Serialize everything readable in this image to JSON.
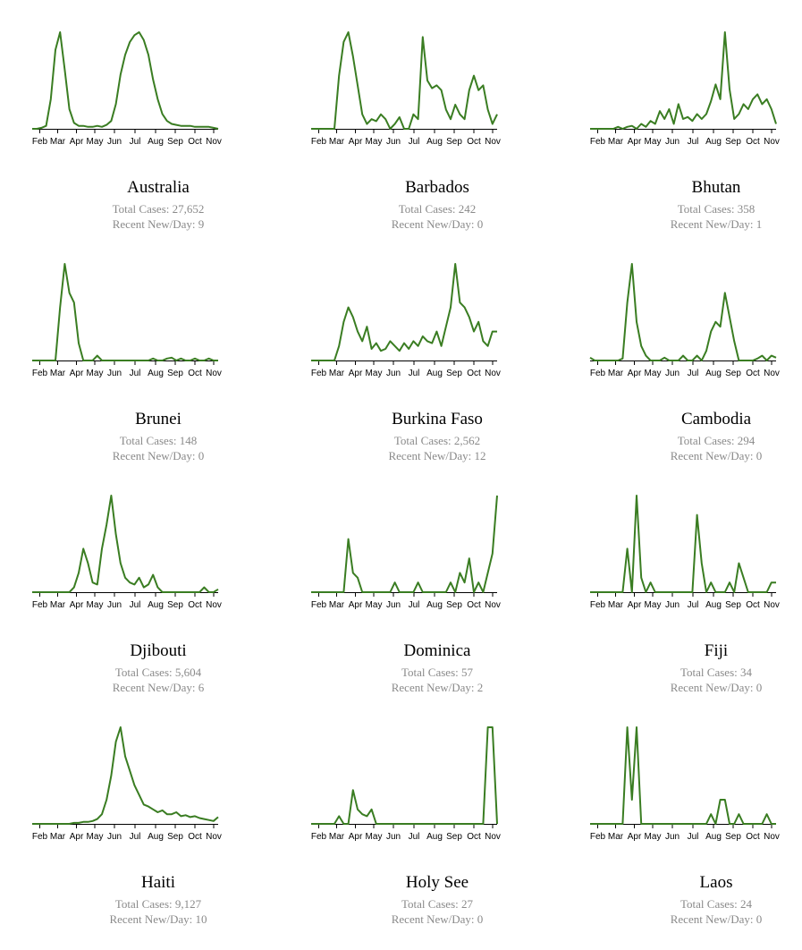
{
  "charts_meta": {
    "total_label": "Total Cases: ",
    "recent_label": "Recent New/Day: ",
    "line_color": "#3a7d22"
  },
  "chart_data": [
    {
      "type": "line",
      "country": "Australia",
      "total_cases": "27,652",
      "recent_new_per_day": "9",
      "x_ticks": [
        "Feb",
        "Mar",
        "Apr",
        "May",
        "Jun",
        "Jul",
        "Aug",
        "Sep",
        "Oct",
        "Nov"
      ],
      "x": [
        0,
        1,
        2,
        3,
        4,
        5,
        6,
        7,
        8,
        9,
        10,
        11,
        12,
        13,
        14,
        15,
        16,
        17,
        18,
        19,
        20,
        21,
        22,
        23,
        24,
        25,
        26,
        27,
        28,
        29,
        30,
        31,
        32,
        33,
        34,
        35,
        36,
        37,
        38,
        39,
        40
      ],
      "values": [
        0,
        0,
        1,
        3,
        30,
        80,
        98,
        60,
        20,
        6,
        3,
        3,
        2,
        2,
        3,
        2,
        4,
        8,
        25,
        55,
        75,
        88,
        95,
        98,
        90,
        75,
        50,
        30,
        15,
        8,
        5,
        4,
        3,
        3,
        3,
        2,
        2,
        2,
        2,
        1,
        0
      ]
    },
    {
      "type": "line",
      "country": "Barbados",
      "total_cases": "242",
      "recent_new_per_day": "0",
      "x_ticks": [
        "Feb",
        "Mar",
        "Apr",
        "May",
        "Jun",
        "Jul",
        "Aug",
        "Sep",
        "Oct",
        "Nov"
      ],
      "x": [
        0,
        1,
        2,
        3,
        4,
        5,
        6,
        7,
        8,
        9,
        10,
        11,
        12,
        13,
        14,
        15,
        16,
        17,
        18,
        19,
        20,
        21,
        22,
        23,
        24,
        25,
        26,
        27,
        28,
        29,
        30,
        31,
        32,
        33,
        34,
        35,
        36,
        37,
        38,
        39,
        40
      ],
      "values": [
        0,
        0,
        0,
        0,
        0,
        0,
        55,
        90,
        100,
        75,
        45,
        15,
        5,
        10,
        8,
        15,
        10,
        0,
        5,
        12,
        0,
        0,
        15,
        10,
        95,
        50,
        42,
        45,
        40,
        20,
        10,
        25,
        15,
        10,
        40,
        55,
        40,
        45,
        20,
        5,
        15
      ]
    },
    {
      "type": "line",
      "country": "Bhutan",
      "total_cases": "358",
      "recent_new_per_day": "1",
      "x_ticks": [
        "Feb",
        "Mar",
        "Apr",
        "May",
        "Jun",
        "Jul",
        "Aug",
        "Sep",
        "Oct",
        "Nov"
      ],
      "x": [
        0,
        1,
        2,
        3,
        4,
        5,
        6,
        7,
        8,
        9,
        10,
        11,
        12,
        13,
        14,
        15,
        16,
        17,
        18,
        19,
        20,
        21,
        22,
        23,
        24,
        25,
        26,
        27,
        28,
        29,
        30,
        31,
        32,
        33,
        34,
        35,
        36,
        37,
        38,
        39,
        40
      ],
      "values": [
        0,
        0,
        0,
        0,
        0,
        0,
        2,
        0,
        2,
        3,
        0,
        5,
        2,
        8,
        5,
        18,
        10,
        20,
        5,
        25,
        10,
        12,
        8,
        15,
        10,
        15,
        28,
        45,
        30,
        98,
        40,
        10,
        15,
        25,
        20,
        30,
        35,
        25,
        30,
        20,
        5
      ]
    },
    {
      "type": "line",
      "country": "Brunei",
      "total_cases": "148",
      "recent_new_per_day": "0",
      "x_ticks": [
        "Feb",
        "Mar",
        "Apr",
        "May",
        "Jun",
        "Jul",
        "Aug",
        "Sep",
        "Oct",
        "Nov"
      ],
      "x": [
        0,
        1,
        2,
        3,
        4,
        5,
        6,
        7,
        8,
        9,
        10,
        11,
        12,
        13,
        14,
        15,
        16,
        17,
        18,
        19,
        20,
        21,
        22,
        23,
        24,
        25,
        26,
        27,
        28,
        29,
        30,
        31,
        32,
        33,
        34,
        35,
        36,
        37,
        38,
        39,
        40
      ],
      "values": [
        0,
        0,
        0,
        0,
        0,
        0,
        55,
        100,
        70,
        60,
        18,
        0,
        0,
        0,
        5,
        0,
        0,
        0,
        0,
        0,
        0,
        0,
        0,
        0,
        0,
        0,
        2,
        0,
        0,
        2,
        3,
        0,
        2,
        0,
        0,
        2,
        0,
        0,
        2,
        0,
        0
      ]
    },
    {
      "type": "line",
      "country": "Burkina Faso",
      "total_cases": "2,562",
      "recent_new_per_day": "12",
      "x_ticks": [
        "Feb",
        "Mar",
        "Apr",
        "May",
        "Jun",
        "Jul",
        "Aug",
        "Sep",
        "Oct",
        "Nov"
      ],
      "x": [
        0,
        1,
        2,
        3,
        4,
        5,
        6,
        7,
        8,
        9,
        10,
        11,
        12,
        13,
        14,
        15,
        16,
        17,
        18,
        19,
        20,
        21,
        22,
        23,
        24,
        25,
        26,
        27,
        28,
        29,
        30,
        31,
        32,
        33,
        34,
        35,
        36,
        37,
        38,
        39,
        40
      ],
      "values": [
        0,
        0,
        0,
        0,
        0,
        0,
        15,
        40,
        55,
        45,
        30,
        20,
        35,
        12,
        18,
        10,
        12,
        20,
        15,
        10,
        18,
        12,
        20,
        15,
        25,
        20,
        18,
        30,
        15,
        35,
        55,
        100,
        60,
        55,
        45,
        30,
        40,
        20,
        15,
        30,
        30
      ]
    },
    {
      "type": "line",
      "country": "Cambodia",
      "total_cases": "294",
      "recent_new_per_day": "0",
      "x_ticks": [
        "Feb",
        "Mar",
        "Apr",
        "May",
        "Jun",
        "Jul",
        "Aug",
        "Sep",
        "Oct",
        "Nov"
      ],
      "x": [
        0,
        1,
        2,
        3,
        4,
        5,
        6,
        7,
        8,
        9,
        10,
        11,
        12,
        13,
        14,
        15,
        16,
        17,
        18,
        19,
        20,
        21,
        22,
        23,
        24,
        25,
        26,
        27,
        28,
        29,
        30,
        31,
        32,
        33,
        34,
        35,
        36,
        37,
        38,
        39,
        40
      ],
      "values": [
        3,
        0,
        0,
        0,
        0,
        0,
        0,
        2,
        60,
        100,
        40,
        15,
        5,
        0,
        0,
        0,
        3,
        0,
        0,
        0,
        5,
        0,
        0,
        5,
        0,
        10,
        30,
        40,
        35,
        70,
        45,
        20,
        0,
        0,
        0,
        0,
        2,
        5,
        0,
        5,
        3
      ]
    },
    {
      "type": "line",
      "country": "Djibouti",
      "total_cases": "5,604",
      "recent_new_per_day": "6",
      "x_ticks": [
        "Feb",
        "Mar",
        "Apr",
        "May",
        "Jun",
        "Jul",
        "Aug",
        "Sep",
        "Oct",
        "Nov"
      ],
      "x": [
        0,
        1,
        2,
        3,
        4,
        5,
        6,
        7,
        8,
        9,
        10,
        11,
        12,
        13,
        14,
        15,
        16,
        17,
        18,
        19,
        20,
        21,
        22,
        23,
        24,
        25,
        26,
        27,
        28,
        29,
        30,
        31,
        32,
        33,
        34,
        35,
        36,
        37,
        38,
        39,
        40
      ],
      "values": [
        0,
        0,
        0,
        0,
        0,
        0,
        0,
        0,
        0,
        5,
        20,
        45,
        30,
        10,
        8,
        45,
        70,
        100,
        60,
        30,
        15,
        10,
        8,
        15,
        5,
        8,
        18,
        5,
        0,
        0,
        0,
        0,
        0,
        0,
        0,
        0,
        0,
        5,
        0,
        0,
        3
      ]
    },
    {
      "type": "line",
      "country": "Dominica",
      "total_cases": "57",
      "recent_new_per_day": "2",
      "x_ticks": [
        "Feb",
        "Mar",
        "Apr",
        "May",
        "Jun",
        "Jul",
        "Aug",
        "Sep",
        "Oct",
        "Nov"
      ],
      "x": [
        0,
        1,
        2,
        3,
        4,
        5,
        6,
        7,
        8,
        9,
        10,
        11,
        12,
        13,
        14,
        15,
        16,
        17,
        18,
        19,
        20,
        21,
        22,
        23,
        24,
        25,
        26,
        27,
        28,
        29,
        30,
        31,
        32,
        33,
        34,
        35,
        36,
        37,
        38,
        39,
        40
      ],
      "values": [
        0,
        0,
        0,
        0,
        0,
        0,
        0,
        0,
        55,
        20,
        15,
        0,
        0,
        0,
        0,
        0,
        0,
        0,
        10,
        0,
        0,
        0,
        0,
        10,
        0,
        0,
        0,
        0,
        0,
        0,
        10,
        0,
        20,
        10,
        35,
        0,
        10,
        0,
        20,
        40,
        100
      ]
    },
    {
      "type": "line",
      "country": "Fiji",
      "total_cases": "34",
      "recent_new_per_day": "0",
      "x_ticks": [
        "Feb",
        "Mar",
        "Apr",
        "May",
        "Jun",
        "Jul",
        "Aug",
        "Sep",
        "Oct",
        "Nov"
      ],
      "x": [
        0,
        1,
        2,
        3,
        4,
        5,
        6,
        7,
        8,
        9,
        10,
        11,
        12,
        13,
        14,
        15,
        16,
        17,
        18,
        19,
        20,
        21,
        22,
        23,
        24,
        25,
        26,
        27,
        28,
        29,
        30,
        31,
        32,
        33,
        34,
        35,
        36,
        37,
        38,
        39,
        40
      ],
      "values": [
        0,
        0,
        0,
        0,
        0,
        0,
        0,
        0,
        45,
        0,
        100,
        15,
        0,
        10,
        0,
        0,
        0,
        0,
        0,
        0,
        0,
        0,
        0,
        80,
        30,
        0,
        10,
        0,
        0,
        0,
        10,
        0,
        30,
        15,
        0,
        0,
        0,
        0,
        0,
        10,
        10
      ]
    },
    {
      "type": "line",
      "country": "Haiti",
      "total_cases": "9,127",
      "recent_new_per_day": "10",
      "x_ticks": [
        "Feb",
        "Mar",
        "Apr",
        "May",
        "Jun",
        "Jul",
        "Aug",
        "Sep",
        "Oct",
        "Nov"
      ],
      "x": [
        0,
        1,
        2,
        3,
        4,
        5,
        6,
        7,
        8,
        9,
        10,
        11,
        12,
        13,
        14,
        15,
        16,
        17,
        18,
        19,
        20,
        21,
        22,
        23,
        24,
        25,
        26,
        27,
        28,
        29,
        30,
        31,
        32,
        33,
        34,
        35,
        36,
        37,
        38,
        39,
        40
      ],
      "values": [
        0,
        0,
        0,
        0,
        0,
        0,
        0,
        0,
        0,
        1,
        1,
        2,
        2,
        3,
        5,
        10,
        25,
        50,
        85,
        100,
        70,
        55,
        40,
        30,
        20,
        18,
        15,
        12,
        14,
        10,
        10,
        12,
        8,
        9,
        7,
        8,
        6,
        5,
        4,
        3,
        7
      ]
    },
    {
      "type": "line",
      "country": "Holy See",
      "total_cases": "27",
      "recent_new_per_day": "0",
      "x_ticks": [
        "Feb",
        "Mar",
        "Apr",
        "May",
        "Jun",
        "Jul",
        "Aug",
        "Sep",
        "Oct",
        "Nov"
      ],
      "x": [
        0,
        1,
        2,
        3,
        4,
        5,
        6,
        7,
        8,
        9,
        10,
        11,
        12,
        13,
        14,
        15,
        16,
        17,
        18,
        19,
        20,
        21,
        22,
        23,
        24,
        25,
        26,
        27,
        28,
        29,
        30,
        31,
        32,
        33,
        34,
        35,
        36,
        37,
        38,
        39,
        40
      ],
      "values": [
        0,
        0,
        0,
        0,
        0,
        0,
        8,
        0,
        0,
        35,
        15,
        10,
        8,
        15,
        0,
        0,
        0,
        0,
        0,
        0,
        0,
        0,
        0,
        0,
        0,
        0,
        0,
        0,
        0,
        0,
        0,
        0,
        0,
        0,
        0,
        0,
        0,
        0,
        100,
        100,
        0
      ]
    },
    {
      "type": "line",
      "country": "Laos",
      "total_cases": "24",
      "recent_new_per_day": "0",
      "x_ticks": [
        "Feb",
        "Mar",
        "Apr",
        "May",
        "Jun",
        "Jul",
        "Aug",
        "Sep",
        "Oct",
        "Nov"
      ],
      "x": [
        0,
        1,
        2,
        3,
        4,
        5,
        6,
        7,
        8,
        9,
        10,
        11,
        12,
        13,
        14,
        15,
        16,
        17,
        18,
        19,
        20,
        21,
        22,
        23,
        24,
        25,
        26,
        27,
        28,
        29,
        30,
        31,
        32,
        33,
        34,
        35,
        36,
        37,
        38,
        39,
        40
      ],
      "values": [
        0,
        0,
        0,
        0,
        0,
        0,
        0,
        0,
        100,
        25,
        100,
        0,
        0,
        0,
        0,
        0,
        0,
        0,
        0,
        0,
        0,
        0,
        0,
        0,
        0,
        0,
        10,
        0,
        25,
        25,
        0,
        0,
        10,
        0,
        0,
        0,
        0,
        0,
        10,
        0,
        0
      ]
    }
  ]
}
